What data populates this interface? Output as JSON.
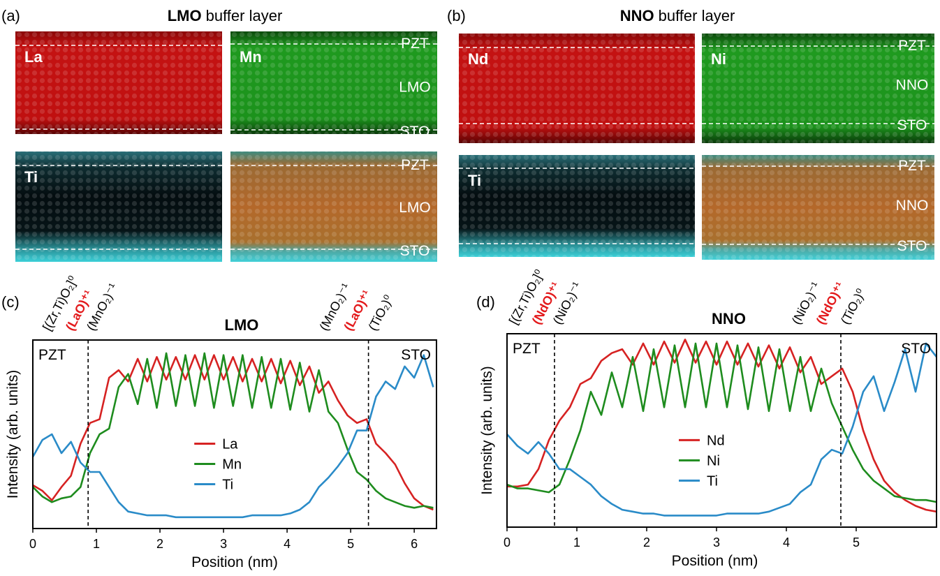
{
  "panels": [
    {
      "label": "(a)",
      "title": {
        "bold": "LMO",
        "rest": "buffer layer"
      },
      "maps": [
        {
          "element": "La"
        },
        {
          "element": "Mn",
          "layers": [
            "PZT",
            "LMO",
            "STO"
          ]
        },
        {
          "element": "Ti"
        },
        {
          "layers": [
            "PZT",
            "LMO",
            "STO"
          ]
        }
      ]
    },
    {
      "label": "(b)",
      "title": {
        "bold": "NNO",
        "rest": "buffer layer"
      },
      "maps": [
        {
          "element": "Nd"
        },
        {
          "element": "Ni",
          "layers": [
            "PZT",
            "NNO",
            "STO"
          ]
        },
        {
          "element": "Ti"
        },
        {
          "layers": [
            "PZT",
            "NNO",
            "STO"
          ]
        }
      ]
    }
  ],
  "chart_data": [
    {
      "type": "line",
      "panel": "(c)",
      "title": "LMO",
      "xlabel": "Position (nm)",
      "ylabel": "Intensity (arb. units)",
      "regions": [
        "PZT",
        "STO"
      ],
      "interface_x": [
        0.87,
        5.28
      ],
      "interface_labels": [
        [
          {
            "text": "[(Zr,Ti)O₂]⁰",
            "color": "#000000"
          },
          {
            "text": "(LaO)⁺¹",
            "color": "#e31a1c"
          },
          {
            "text": "(MnO₂)⁻¹",
            "color": "#000000"
          }
        ],
        [
          {
            "text": "(MnO₂)⁻¹",
            "color": "#000000"
          },
          {
            "text": "(LaO)⁺¹",
            "color": "#e31a1c"
          },
          {
            "text": "(TiO₂)⁰",
            "color": "#000000"
          }
        ]
      ],
      "xlim": [
        0,
        6.35
      ],
      "xticks": [
        0,
        1,
        2,
        3,
        4,
        5,
        6
      ],
      "ylim": [
        0,
        100
      ],
      "legend": "center",
      "x": [
        0,
        0.15,
        0.3,
        0.45,
        0.6,
        0.75,
        0.9,
        1.05,
        1.2,
        1.35,
        1.5,
        1.65,
        1.8,
        1.95,
        2.1,
        2.25,
        2.4,
        2.55,
        2.7,
        2.85,
        3,
        3.15,
        3.3,
        3.45,
        3.6,
        3.75,
        3.9,
        4.05,
        4.2,
        4.35,
        4.5,
        4.65,
        4.8,
        4.95,
        5.1,
        5.25,
        5.4,
        5.55,
        5.7,
        5.85,
        6,
        6.15,
        6.3
      ],
      "series": [
        {
          "name": "La",
          "color": "#d62222",
          "values": [
            23,
            20,
            15,
            22,
            28,
            45,
            56,
            58,
            80,
            84,
            78,
            90,
            78,
            91,
            79,
            91,
            79,
            92,
            79,
            92,
            79,
            91,
            78,
            90,
            78,
            90,
            77,
            89,
            76,
            86,
            72,
            78,
            68,
            60,
            56,
            58,
            45,
            40,
            34,
            24,
            16,
            12,
            10
          ]
        },
        {
          "name": "Mn",
          "color": "#1e8c1e",
          "values": [
            22,
            17,
            14,
            16,
            17,
            22,
            40,
            50,
            53,
            75,
            82,
            66,
            90,
            64,
            93,
            65,
            92,
            65,
            93,
            64,
            92,
            65,
            92,
            64,
            91,
            64,
            90,
            63,
            88,
            62,
            84,
            62,
            56,
            42,
            30,
            26,
            20,
            16,
            14,
            12,
            11,
            12,
            11
          ]
        },
        {
          "name": "Ti",
          "color": "#2a8bc8",
          "values": [
            38,
            47,
            50,
            40,
            46,
            35,
            30,
            30,
            22,
            14,
            9,
            8,
            7,
            7,
            7,
            6,
            6,
            6,
            6,
            6,
            6,
            6,
            6,
            7,
            7,
            7,
            7,
            8,
            10,
            14,
            22,
            27,
            33,
            40,
            52,
            52,
            70,
            78,
            74,
            86,
            80,
            92,
            75
          ]
        }
      ]
    },
    {
      "type": "line",
      "panel": "(d)",
      "title": "NNO",
      "xlabel": "Position (nm)",
      "ylabel": "Intensity (arb. units)",
      "regions": [
        "PZT",
        "STO"
      ],
      "interface_x": [
        0.68,
        4.78
      ],
      "interface_labels": [
        [
          {
            "text": "[(Zr,Ti)O₂]⁰",
            "color": "#000000"
          },
          {
            "text": "(NdO)⁺¹",
            "color": "#e31a1c"
          },
          {
            "text": "(NiO₂)⁻¹",
            "color": "#000000"
          }
        ],
        [
          {
            "text": "(NiO₂)⁻¹",
            "color": "#000000"
          },
          {
            "text": "(NdO)⁺¹",
            "color": "#e31a1c"
          },
          {
            "text": "(TiO₂)⁰",
            "color": "#000000"
          }
        ]
      ],
      "xlim": [
        0,
        6.15
      ],
      "xticks": [
        0,
        1,
        2,
        3,
        4,
        5
      ],
      "ylim": [
        0,
        100
      ],
      "legend": "center",
      "x": [
        0,
        0.15,
        0.3,
        0.45,
        0.6,
        0.75,
        0.9,
        1.05,
        1.2,
        1.35,
        1.5,
        1.65,
        1.8,
        1.95,
        2.1,
        2.25,
        2.4,
        2.55,
        2.7,
        2.85,
        3,
        3.15,
        3.3,
        3.45,
        3.6,
        3.75,
        3.9,
        4.05,
        4.2,
        4.35,
        4.5,
        4.65,
        4.8,
        4.95,
        5.1,
        5.25,
        5.4,
        5.55,
        5.7,
        5.85,
        6,
        6.15
      ],
      "series": [
        {
          "name": "Nd",
          "color": "#d62222",
          "values": [
            21,
            21,
            22,
            30,
            45,
            55,
            62,
            74,
            77,
            86,
            90,
            92,
            84,
            95,
            84,
            96,
            85,
            97,
            85,
            96,
            84,
            96,
            84,
            95,
            83,
            94,
            82,
            93,
            80,
            88,
            74,
            78,
            82,
            70,
            50,
            35,
            24,
            18,
            14,
            11,
            9,
            8
          ]
        },
        {
          "name": "Ni",
          "color": "#1e8c1e",
          "values": [
            22,
            20,
            20,
            19,
            18,
            22,
            35,
            50,
            70,
            58,
            80,
            62,
            88,
            60,
            92,
            62,
            94,
            62,
            95,
            62,
            95,
            62,
            94,
            61,
            93,
            60,
            92,
            60,
            88,
            60,
            82,
            64,
            52,
            40,
            30,
            24,
            20,
            16,
            15,
            14,
            14,
            13
          ]
        },
        {
          "name": "Ti",
          "color": "#2a8bc8",
          "values": [
            48,
            42,
            38,
            44,
            38,
            30,
            30,
            26,
            22,
            16,
            12,
            9,
            8,
            7,
            7,
            6,
            6,
            6,
            6,
            6,
            6,
            7,
            7,
            7,
            7,
            8,
            10,
            12,
            18,
            22,
            35,
            40,
            38,
            52,
            70,
            78,
            60,
            75,
            92,
            70,
            95,
            88
          ]
        }
      ]
    }
  ]
}
